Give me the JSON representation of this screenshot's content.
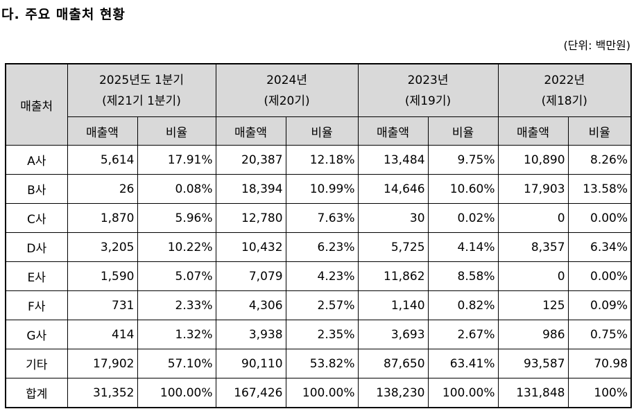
{
  "title": "다. 주요 매출처 현황",
  "unit": "(단위: 백만원)",
  "header": {
    "customer": "매출처",
    "periods": [
      {
        "year": "2025년도 1분기",
        "term": "(제21기 1분기)"
      },
      {
        "year": "2024년",
        "term": "(제20기)"
      },
      {
        "year": "2023년",
        "term": "(제19기)"
      },
      {
        "year": "2022년",
        "term": "(제18기)"
      }
    ],
    "sales": "매출액",
    "ratio": "비율"
  },
  "rows": [
    {
      "name": "A사",
      "cells": [
        "5,614",
        "17.91%",
        "20,387",
        "12.18%",
        "13,484",
        "9.75%",
        "10,890",
        "8.26%"
      ]
    },
    {
      "name": "B사",
      "cells": [
        "26",
        "0.08%",
        "18,394",
        "10.99%",
        "14,646",
        "10.60%",
        "17,903",
        "13.58%"
      ]
    },
    {
      "name": "C사",
      "cells": [
        "1,870",
        "5.96%",
        "12,780",
        "7.63%",
        "30",
        "0.02%",
        "0",
        "0.00%"
      ]
    },
    {
      "name": "D사",
      "cells": [
        "3,205",
        "10.22%",
        "10,432",
        "6.23%",
        "5,725",
        "4.14%",
        "8,357",
        "6.34%"
      ]
    },
    {
      "name": "E사",
      "cells": [
        "1,590",
        "5.07%",
        "7,079",
        "4.23%",
        "11,862",
        "8.58%",
        "0",
        "0.00%"
      ]
    },
    {
      "name": "F사",
      "cells": [
        "731",
        "2.33%",
        "4,306",
        "2.57%",
        "1,140",
        "0.82%",
        "125",
        "0.09%"
      ]
    },
    {
      "name": "G사",
      "cells": [
        "414",
        "1.32%",
        "3,938",
        "2.35%",
        "3,693",
        "2.67%",
        "986",
        "0.75%"
      ]
    },
    {
      "name": "기타",
      "cells": [
        "17,902",
        "57.10%",
        "90,110",
        "53.82%",
        "87,650",
        "63.41%",
        "93,587",
        "70.98"
      ]
    },
    {
      "name": "합계",
      "cells": [
        "31,352",
        "100.00%",
        "167,426",
        "100.00%",
        "138,230",
        "100.00%",
        "131,848",
        "100%"
      ]
    }
  ]
}
